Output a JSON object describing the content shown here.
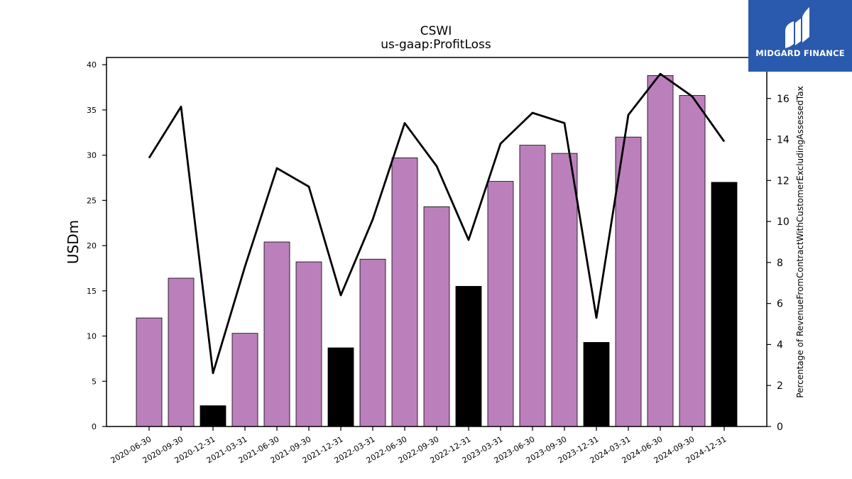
{
  "chart_data": {
    "type": "bar",
    "title": "CSWI",
    "subtitle": "us-gaap:ProfitLoss",
    "ylabel": "USDm",
    "ylabel_right": "Percentage of RevenueFromContractWithCustomerExcludingAssessedTax",
    "ylim": [
      0,
      40.8
    ],
    "ylim_right": [
      0,
      18
    ],
    "yticks": [
      0,
      5,
      10,
      15,
      20,
      25,
      30,
      35,
      40
    ],
    "yticks_right": [
      0,
      2,
      4,
      6,
      8,
      10,
      12,
      14,
      16
    ],
    "categories": [
      "2020-06-30",
      "2020-09-30",
      "2020-12-31",
      "2021-03-31",
      "2021-06-30",
      "2021-09-30",
      "2021-12-31",
      "2022-03-31",
      "2022-06-30",
      "2022-09-30",
      "2022-12-31",
      "2023-03-31",
      "2023-06-30",
      "2023-09-30",
      "2023-12-31",
      "2024-03-31",
      "2024-06-30",
      "2024-09-30",
      "2024-12-31"
    ],
    "series": [
      {
        "type": "bar",
        "axis": "left",
        "values": [
          12.0,
          16.4,
          2.3,
          10.3,
          20.4,
          18.2,
          8.7,
          18.5,
          29.7,
          24.3,
          15.5,
          27.1,
          31.1,
          30.2,
          9.3,
          32.0,
          38.8,
          36.6,
          27.0
        ],
        "colors": [
          "#bb80bb",
          "#bb80bb",
          "#000000",
          "#bb80bb",
          "#bb80bb",
          "#bb80bb",
          "#000000",
          "#bb80bb",
          "#bb80bb",
          "#bb80bb",
          "#000000",
          "#bb80bb",
          "#bb80bb",
          "#bb80bb",
          "#000000",
          "#bb80bb",
          "#bb80bb",
          "#bb80bb",
          "#000000"
        ]
      },
      {
        "type": "line",
        "axis": "right",
        "color": "#000000",
        "values": [
          13.1,
          15.6,
          2.6,
          7.8,
          12.6,
          11.7,
          6.4,
          10.1,
          14.8,
          12.7,
          9.1,
          13.8,
          15.3,
          14.8,
          5.3,
          15.2,
          17.2,
          16.1,
          13.9
        ]
      }
    ],
    "grid": false,
    "legend": "none"
  },
  "logo": {
    "text": "MIDGARD FINANCE",
    "background": "#2a5aad"
  }
}
